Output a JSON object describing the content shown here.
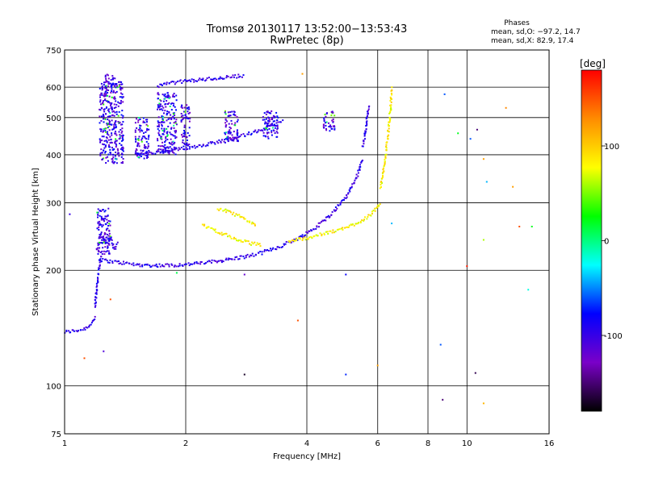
{
  "chart_data": {
    "type": "scatter",
    "title": "Tromsø 20130117 13:52:00−13:53:43",
    "subtitle": "RwPretec (8p)",
    "xlabel": "Frequency [MHz]",
    "ylabel": "Stationary phase Virtual Height [km]",
    "x_scale": "log",
    "y_scale": "log",
    "xlim": [
      1,
      16
    ],
    "ylim": [
      75,
      750
    ],
    "x_ticks": [
      1,
      2,
      4,
      6,
      8,
      10,
      16
    ],
    "y_ticks": [
      75,
      100,
      200,
      300,
      400,
      500,
      600,
      750
    ],
    "grid": true,
    "stats": {
      "heading": "Phases",
      "line_o": "mean, sd,O: −97.2, 14.7",
      "line_x": "mean, sd,X:  82.9, 17.4"
    },
    "colorbar": {
      "label": "[deg]",
      "range": [
        -180,
        180
      ],
      "ticks": [
        100,
        0,
        -100
      ],
      "stops": [
        "#000000",
        "#7a00c8",
        "#0000ff",
        "#00ffff",
        "#00ff00",
        "#ffff00",
        "#ff8c00",
        "#ff0000"
      ]
    },
    "series": [
      {
        "mode": "O",
        "phase_mean": -97.2,
        "traces": [
          {
            "x": [
              1.0,
              1.05,
              1.1,
              1.14,
              1.17,
              1.19
            ],
            "y": [
              138,
              139,
              140,
              142,
              146,
              152
            ]
          },
          {
            "x": [
              1.19,
              1.2,
              1.21,
              1.22,
              1.23
            ],
            "y": [
              160,
              175,
              190,
              205,
              220
            ]
          },
          {
            "x": [
              1.22,
              1.3,
              1.4,
              1.5,
              1.6,
              1.8,
              2.0,
              2.3,
              2.6,
              3.0,
              3.4,
              3.8,
              4.2,
              4.6,
              5.0,
              5.3,
              5.5
            ],
            "y": [
              213,
              211,
              209,
              207,
              206,
              206,
              207,
              210,
              214,
              220,
              230,
              242,
              258,
              280,
              310,
              345,
              390
            ]
          },
          {
            "x": [
              5.5,
              5.6,
              5.65,
              5.7
            ],
            "y": [
              420,
              460,
              500,
              540
            ]
          },
          {
            "x": [
              1.5,
              1.7,
              1.9,
              2.1,
              2.3,
              2.6,
              2.9,
              3.2,
              3.5
            ],
            "y": [
              400,
              405,
              412,
              420,
              428,
              440,
              455,
              470,
              490
            ]
          },
          {
            "x": [
              1.7,
              1.8,
              1.9,
              2.0,
              2.2,
              2.5,
              2.8
            ],
            "y": [
              605,
              612,
              618,
              622,
              628,
              636,
              644
            ]
          },
          {
            "x": [
              1.22,
              1.25,
              1.28,
              1.3,
              1.33,
              1.36
            ],
            "y": [
              250,
              240,
              232,
              245,
              228,
              236
            ]
          }
        ]
      },
      {
        "mode": "X",
        "phase_mean": 82.9,
        "traces": [
          {
            "x": [
              2.2,
              2.35,
              2.5,
              2.7,
              2.9,
              3.1
            ],
            "y": [
              262,
              255,
              248,
              240,
              235,
              233
            ]
          },
          {
            "x": [
              3.6,
              4.0,
              4.5,
              5.0,
              5.5,
              5.9,
              6.1
            ],
            "y": [
              238,
              243,
              250,
              258,
              270,
              285,
              300
            ]
          },
          {
            "x": [
              6.1,
              6.25,
              6.35,
              6.45,
              6.5
            ],
            "y": [
              330,
              380,
              440,
              520,
              600
            ]
          },
          {
            "x": [
              2.4,
              2.6,
              2.8,
              3.0
            ],
            "y": [
              290,
              282,
              272,
              262
            ]
          }
        ]
      }
    ],
    "clusters": [
      {
        "xr": [
          1.22,
          1.4
        ],
        "yr": [
          380,
          620
        ]
      },
      {
        "xr": [
          1.26,
          1.34
        ],
        "yr": [
          600,
          650
        ]
      },
      {
        "xr": [
          1.5,
          1.62
        ],
        "yr": [
          390,
          500
        ]
      },
      {
        "xr": [
          1.7,
          1.9
        ],
        "yr": [
          400,
          580
        ]
      },
      {
        "xr": [
          1.95,
          2.05
        ],
        "yr": [
          420,
          540
        ]
      },
      {
        "xr": [
          2.5,
          2.7
        ],
        "yr": [
          430,
          520
        ]
      },
      {
        "xr": [
          3.1,
          3.4
        ],
        "yr": [
          440,
          520
        ]
      },
      {
        "xr": [
          4.4,
          4.7
        ],
        "yr": [
          460,
          520
        ]
      },
      {
        "xr": [
          1.2,
          1.3
        ],
        "yr": [
          220,
          290
        ]
      }
    ],
    "outliers": [
      {
        "x": 1.03,
        "y": 280,
        "c": -100
      },
      {
        "x": 1.12,
        "y": 118,
        "c": 150
      },
      {
        "x": 1.25,
        "y": 123,
        "c": -110
      },
      {
        "x": 1.3,
        "y": 168,
        "c": 150
      },
      {
        "x": 1.9,
        "y": 197,
        "c": 10
      },
      {
        "x": 2.8,
        "y": 195,
        "c": -120
      },
      {
        "x": 2.8,
        "y": 107,
        "c": -170
      },
      {
        "x": 3.8,
        "y": 148,
        "c": 150
      },
      {
        "x": 3.9,
        "y": 650,
        "c": 120
      },
      {
        "x": 5.0,
        "y": 195,
        "c": -80
      },
      {
        "x": 5.0,
        "y": 107,
        "c": -70
      },
      {
        "x": 6.0,
        "y": 113,
        "c": 120
      },
      {
        "x": 6.5,
        "y": 265,
        "c": -40
      },
      {
        "x": 8.6,
        "y": 128,
        "c": -60
      },
      {
        "x": 8.7,
        "y": 92,
        "c": -150
      },
      {
        "x": 8.8,
        "y": 575,
        "c": -60
      },
      {
        "x": 9.5,
        "y": 455,
        "c": 20
      },
      {
        "x": 10.0,
        "y": 205,
        "c": 170
      },
      {
        "x": 10.2,
        "y": 440,
        "c": -60
      },
      {
        "x": 10.5,
        "y": 108,
        "c": -160
      },
      {
        "x": 10.6,
        "y": 465,
        "c": -150
      },
      {
        "x": 11.0,
        "y": 390,
        "c": 120
      },
      {
        "x": 11.0,
        "y": 240,
        "c": 60
      },
      {
        "x": 11.0,
        "y": 90,
        "c": 110
      },
      {
        "x": 11.2,
        "y": 340,
        "c": -40
      },
      {
        "x": 12.5,
        "y": 530,
        "c": 130
      },
      {
        "x": 13.0,
        "y": 330,
        "c": 120
      },
      {
        "x": 13.5,
        "y": 260,
        "c": 150
      },
      {
        "x": 14.5,
        "y": 260,
        "c": 20
      },
      {
        "x": 14.2,
        "y": 178,
        "c": -20
      }
    ]
  }
}
